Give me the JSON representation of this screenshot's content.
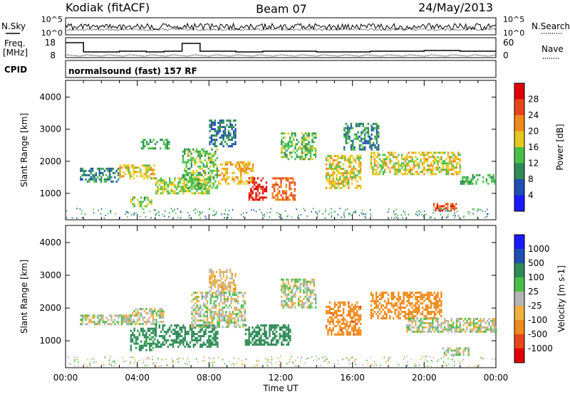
{
  "header": {
    "station": "Kodiak (fitACF)",
    "beam": "Beam 07",
    "date": "24/May/2013"
  },
  "status_panels": {
    "nsky_label": "N.Sky",
    "nsearch_label": "N.Search",
    "left_ticks_top": [
      "10^5",
      "10^0"
    ],
    "right_ticks_top": [
      "10^5",
      "10^0"
    ],
    "freq_label_line1": "Freq.",
    "freq_label_line2": "[MHz]",
    "freq_ticks": [
      "18",
      "8"
    ],
    "nave_label": "Nave",
    "nave_ticks": [
      "60",
      "0"
    ],
    "cpid_label": "CPID",
    "cpid_text": "normalsound (fast) 157 RF"
  },
  "colors": {
    "power": [
      "#1a1aff",
      "#1f4fb3",
      "#2e8b57",
      "#48c048",
      "#e6c81c",
      "#f08a1a",
      "#e8461a",
      "#e00000"
    ],
    "velocity": [
      "#e00000",
      "#e8461a",
      "#f08a1a",
      "#f0b040",
      "#b4b4b4",
      "#48c048",
      "#2e8b57",
      "#1f4fb3",
      "#1a1aff"
    ]
  },
  "chart_data": [
    {
      "type": "heatmap",
      "panel": "power",
      "xlabel": "",
      "ylabel": "Slant Range [km]",
      "xlim": [
        0,
        24
      ],
      "ylim": [
        200,
        4500
      ],
      "yticks": [
        "1000",
        "2000",
        "3000",
        "4000"
      ],
      "colorbar_label": "Power [dB]",
      "colorbar_ticks": [
        "4",
        "8",
        "12",
        "16",
        "20",
        "24",
        "28"
      ],
      "colorbar_range": [
        0,
        32
      ],
      "echo_regions": [
        {
          "t": [
            0.8,
            3.0
          ],
          "r": [
            1400,
            1800
          ],
          "value": 10
        },
        {
          "t": [
            3.0,
            5.0
          ],
          "r": [
            1500,
            1900
          ],
          "value": 18
        },
        {
          "t": [
            4.2,
            5.8
          ],
          "r": [
            2400,
            2700
          ],
          "value": 12
        },
        {
          "t": [
            3.6,
            4.8
          ],
          "r": [
            600,
            900
          ],
          "value": 14
        },
        {
          "t": [
            5.0,
            8.0
          ],
          "r": [
            1000,
            1500
          ],
          "value": 16
        },
        {
          "t": [
            6.5,
            8.5
          ],
          "r": [
            1200,
            2400
          ],
          "value": 14
        },
        {
          "t": [
            8.0,
            9.5
          ],
          "r": [
            2500,
            3300
          ],
          "value": 8
        },
        {
          "t": [
            8.5,
            10.5
          ],
          "r": [
            1300,
            2000
          ],
          "value": 20
        },
        {
          "t": [
            10.2,
            11.2
          ],
          "r": [
            800,
            1500
          ],
          "value": 28
        },
        {
          "t": [
            11.5,
            12.8
          ],
          "r": [
            800,
            1500
          ],
          "value": 24
        },
        {
          "t": [
            12.0,
            14.0
          ],
          "r": [
            2100,
            2900
          ],
          "value": 14
        },
        {
          "t": [
            14.5,
            16.5
          ],
          "r": [
            1200,
            2200
          ],
          "value": 18
        },
        {
          "t": [
            15.5,
            17.5
          ],
          "r": [
            2400,
            3200
          ],
          "value": 10
        },
        {
          "t": [
            17.0,
            22.0
          ],
          "r": [
            1600,
            2300
          ],
          "value": 18
        },
        {
          "t": [
            20.5,
            21.8
          ],
          "r": [
            500,
            700
          ],
          "value": 26
        },
        {
          "t": [
            22.0,
            24.0
          ],
          "r": [
            1300,
            1600
          ],
          "value": 12
        }
      ]
    },
    {
      "type": "heatmap",
      "panel": "velocity",
      "xlabel": "Time UT",
      "ylabel": "Slant Range [km]",
      "xlim": [
        0,
        24
      ],
      "ylim": [
        200,
        4500
      ],
      "xticks": [
        "00:00",
        "04:00",
        "08:00",
        "12:00",
        "16:00",
        "20:00",
        "00:00"
      ],
      "yticks": [
        "1000",
        "2000",
        "3000",
        "4000"
      ],
      "colorbar_label": "Velocity [m s-1]",
      "colorbar_ticks": [
        "1000",
        "500",
        "100",
        "25",
        "-25",
        "-100",
        "-500",
        "-1000"
      ],
      "echo_regions": [
        {
          "t": [
            0.8,
            4.0
          ],
          "r": [
            1500,
            1800
          ],
          "value": 0
        },
        {
          "t": [
            3.5,
            5.5
          ],
          "r": [
            1500,
            2000
          ],
          "value": 0
        },
        {
          "t": [
            3.6,
            5.0
          ],
          "r": [
            700,
            1400
          ],
          "value": 150
        },
        {
          "t": [
            5.0,
            8.5
          ],
          "r": [
            800,
            1500
          ],
          "value": 250
        },
        {
          "t": [
            7.0,
            10.0
          ],
          "r": [
            1400,
            2500
          ],
          "value": 0
        },
        {
          "t": [
            8.0,
            9.5
          ],
          "r": [
            2500,
            3200
          ],
          "value": -50
        },
        {
          "t": [
            10.0,
            12.5
          ],
          "r": [
            900,
            1500
          ],
          "value": 200
        },
        {
          "t": [
            12.0,
            14.0
          ],
          "r": [
            2000,
            2900
          ],
          "value": 0
        },
        {
          "t": [
            14.5,
            16.5
          ],
          "r": [
            1200,
            2200
          ],
          "value": -450
        },
        {
          "t": [
            17.0,
            21.0
          ],
          "r": [
            1700,
            2500
          ],
          "value": -400
        },
        {
          "t": [
            19.0,
            24.0
          ],
          "r": [
            1300,
            1700
          ],
          "value": 0
        },
        {
          "t": [
            21.0,
            22.5
          ],
          "r": [
            600,
            800
          ],
          "value": 0
        }
      ]
    }
  ]
}
